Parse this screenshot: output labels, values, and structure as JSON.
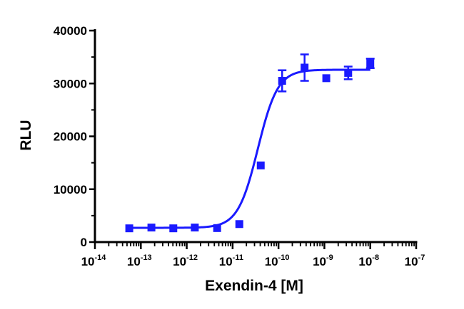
{
  "chart_data": {
    "type": "scatter",
    "title": "",
    "xlabel": "Exendin-4 [M]",
    "ylabel": "RLU",
    "x_scale": "log",
    "xlim": [
      1e-14,
      1e-07
    ],
    "ylim": [
      0,
      40000
    ],
    "grid": false,
    "legend": "none",
    "x_ticks": [
      {
        "base": "10",
        "exp": "-14"
      },
      {
        "base": "10",
        "exp": "-13"
      },
      {
        "base": "10",
        "exp": "-12"
      },
      {
        "base": "10",
        "exp": "-11"
      },
      {
        "base": "10",
        "exp": "-10"
      },
      {
        "base": "10",
        "exp": "-9"
      },
      {
        "base": "10",
        "exp": "-8"
      },
      {
        "base": "10",
        "exp": "-7"
      }
    ],
    "y_ticks": [
      "0",
      "10000",
      "20000",
      "30000",
      "40000"
    ],
    "series": [
      {
        "color": "#1a1aff",
        "points": [
          {
            "x": 5.6e-14,
            "y": 2600,
            "err": 150
          },
          {
            "x": 1.7e-13,
            "y": 2750,
            "err": 150
          },
          {
            "x": 5.1e-13,
            "y": 2600,
            "err": 150
          },
          {
            "x": 1.5e-12,
            "y": 2750,
            "err": 150
          },
          {
            "x": 4.6e-12,
            "y": 2650,
            "err": 150
          },
          {
            "x": 1.4e-11,
            "y": 3400,
            "err": 200
          },
          {
            "x": 4.1e-11,
            "y": 14500,
            "err": 300
          },
          {
            "x": 1.2e-10,
            "y": 30500,
            "err": 2000
          },
          {
            "x": 3.7e-10,
            "y": 33000,
            "err": 2500
          },
          {
            "x": 1.1e-09,
            "y": 31000,
            "err": 500
          },
          {
            "x": 3.3e-09,
            "y": 32000,
            "err": 1200
          },
          {
            "x": 1e-08,
            "y": 33800,
            "err": 900
          }
        ],
        "fit": {
          "model": "4PL",
          "bottom": 2700,
          "top": 32600,
          "log_ec50": -10.45,
          "hill": 2.0
        }
      }
    ]
  }
}
